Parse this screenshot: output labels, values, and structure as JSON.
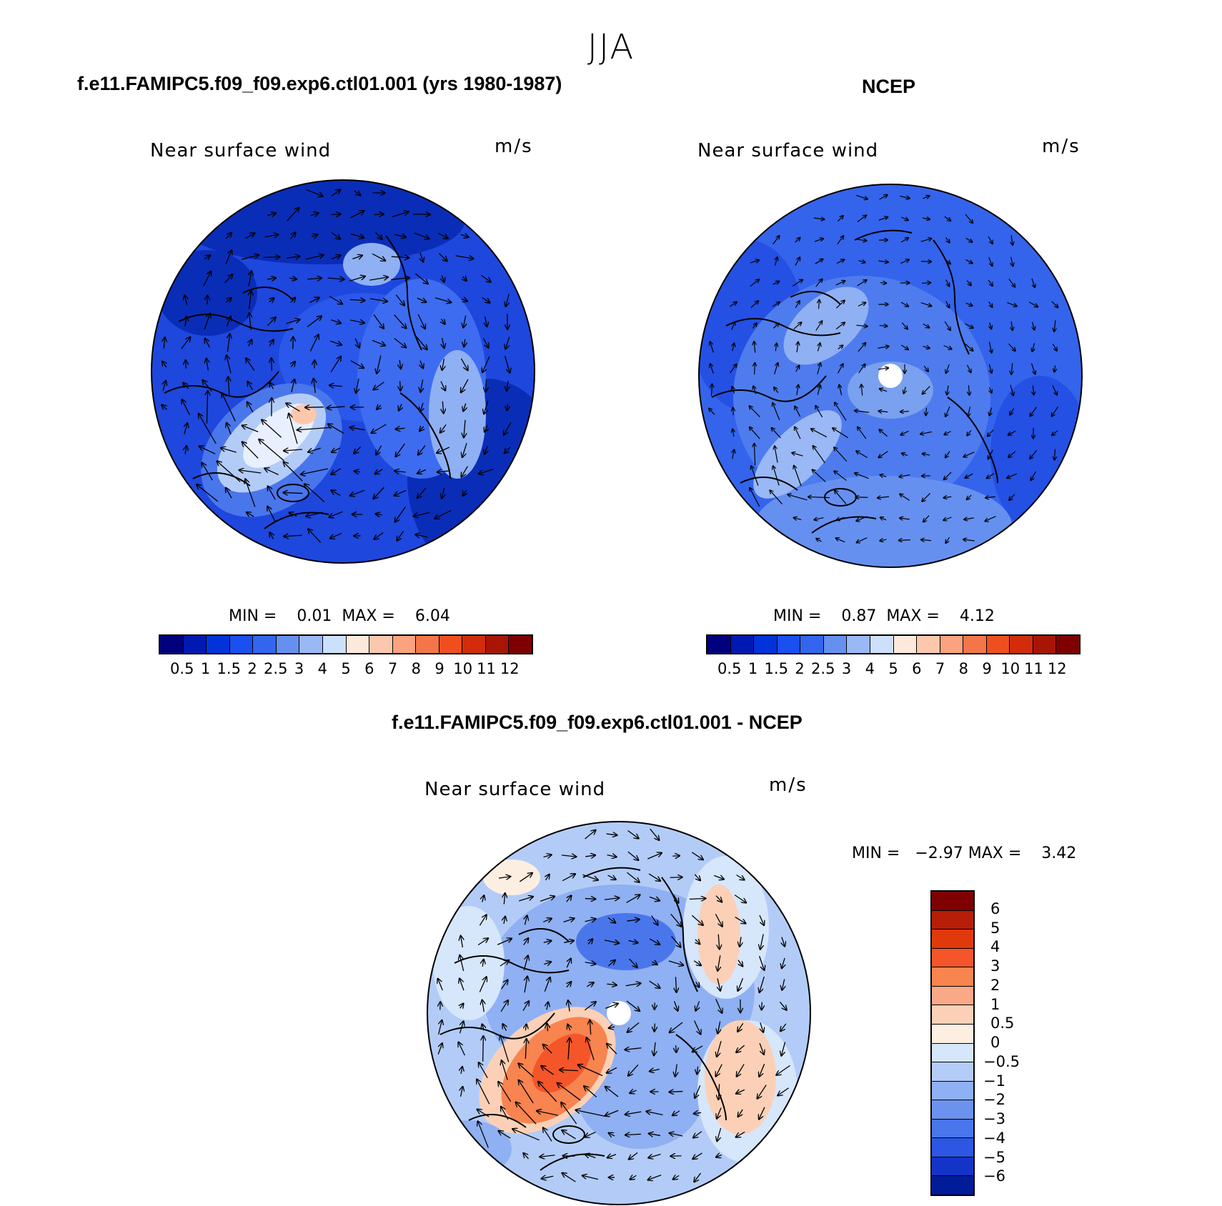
{
  "season": "JJA",
  "panels": [
    {
      "id": "model",
      "title": "f.e11.FAMIPC5.f09_f09.exp6.ctl01.001 (yrs 1980-1987)",
      "subtitle": "Near surface wind",
      "units": "m/s",
      "min_label": "MIN =",
      "min_value": "0.01",
      "max_label": "MAX =",
      "max_value": "6.04",
      "colorbar_ticks": [
        "0.5",
        "1",
        "1.5",
        "2",
        "2.5",
        "3",
        "4",
        "5",
        "6",
        "7",
        "8",
        "9",
        "10",
        "11",
        "12"
      ]
    },
    {
      "id": "obs",
      "title": "NCEP",
      "subtitle": "Near surface wind",
      "units": "m/s",
      "min_label": "MIN =",
      "min_value": "0.87",
      "max_label": "MAX =",
      "max_value": "4.12",
      "colorbar_ticks": [
        "0.5",
        "1",
        "1.5",
        "2",
        "2.5",
        "3",
        "4",
        "5",
        "6",
        "7",
        "8",
        "9",
        "10",
        "11",
        "12"
      ]
    },
    {
      "id": "diff",
      "title": "f.e11.FAMIPC5.f09_f09.exp6.ctl01.001 - NCEP",
      "subtitle": "Near surface wind",
      "units": "m/s",
      "min_label": "MIN =",
      "min_value": "−2.97",
      "max_label": "MAX =",
      "max_value": "3.42",
      "colorbar_ticks": [
        "6",
        "5",
        "4",
        "3",
        "2",
        "1",
        "0.5",
        "0",
        "−0.5",
        "−1",
        "−2",
        "−3",
        "−4",
        "−5",
        "−6"
      ]
    }
  ],
  "colors": {
    "absolute_scale": [
      "#00007f",
      "#0019b2",
      "#0033d9",
      "#1a4ff0",
      "#3366ee",
      "#6690f0",
      "#99b8f5",
      "#cce0fb",
      "#fde9dc",
      "#fcc8ad",
      "#faa37e",
      "#f47648",
      "#ef4f1f",
      "#d22c0a",
      "#a81505",
      "#7f0000"
    ],
    "difference_scale": [
      "#7f0000",
      "#b81d08",
      "#e03a0c",
      "#f4562a",
      "#f8844f",
      "#faa987",
      "#fbd0b6",
      "#fdeee2",
      "#d6e6fb",
      "#b3ccf7",
      "#8fb0f2",
      "#6a92ee",
      "#4a76ec",
      "#2c56e3",
      "#1434c8",
      "#001c98"
    ]
  }
}
